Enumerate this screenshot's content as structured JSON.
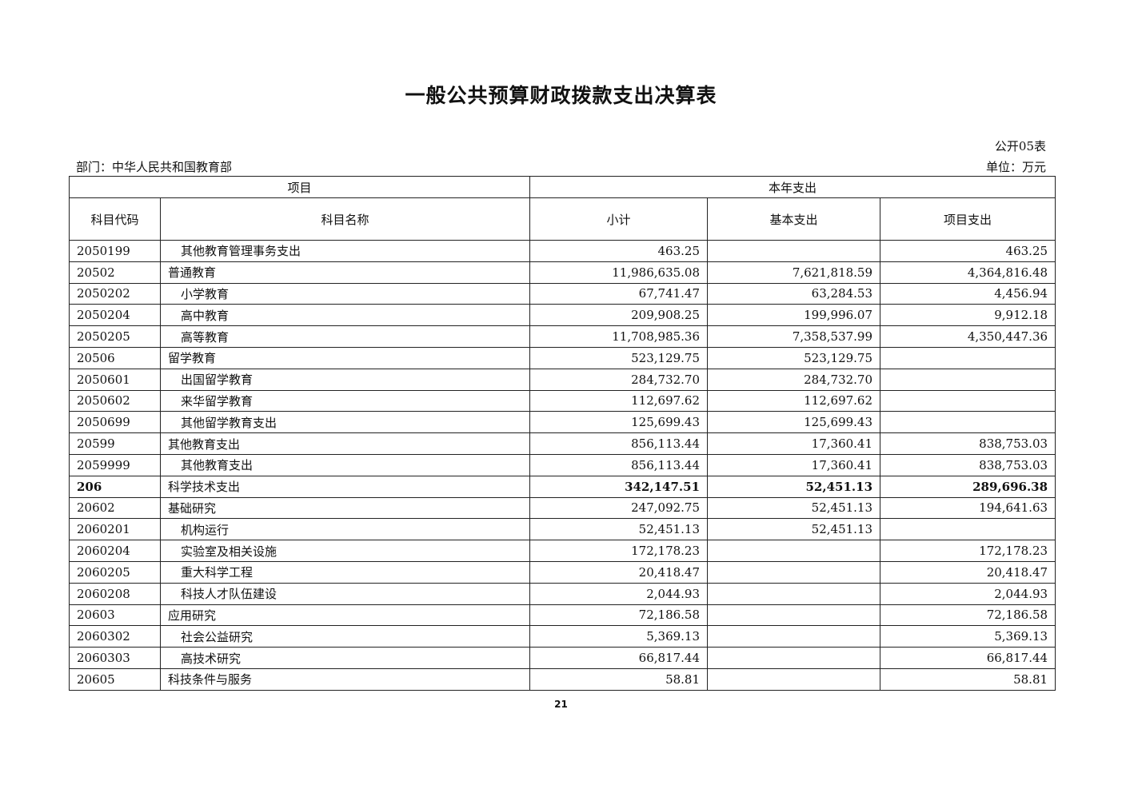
{
  "title": "一般公共预算财政拨款支出决算表",
  "form_number": "公开05表",
  "department": "部门：中华人民共和国教育部",
  "unit": "单位：万元",
  "table": {
    "group_headers": {
      "item": "项目",
      "current_year": "本年支出"
    },
    "columns": [
      "科目代码",
      "科目名称",
      "小计",
      "基本支出",
      "项目支出"
    ],
    "rows": [
      {
        "code": "2050199",
        "name": "其他教育管理事务支出",
        "subtotal": "463.25",
        "basic": "",
        "project": "463.25"
      },
      {
        "code": "20502",
        "name": "普通教育",
        "subtotal": "11,986,635.08",
        "basic": "7,621,818.59",
        "project": "4,364,816.48"
      },
      {
        "code": "2050202",
        "name": "小学教育",
        "subtotal": "67,741.47",
        "basic": "63,284.53",
        "project": "4,456.94"
      },
      {
        "code": "2050204",
        "name": "高中教育",
        "subtotal": "209,908.25",
        "basic": "199,996.07",
        "project": "9,912.18"
      },
      {
        "code": "2050205",
        "name": "高等教育",
        "subtotal": "11,708,985.36",
        "basic": "7,358,537.99",
        "project": "4,350,447.36"
      },
      {
        "code": "20506",
        "name": "留学教育",
        "subtotal": "523,129.75",
        "basic": "523,129.75",
        "project": ""
      },
      {
        "code": "2050601",
        "name": "出国留学教育",
        "subtotal": "284,732.70",
        "basic": "284,732.70",
        "project": ""
      },
      {
        "code": "2050602",
        "name": "来华留学教育",
        "subtotal": "112,697.62",
        "basic": "112,697.62",
        "project": ""
      },
      {
        "code": "2050699",
        "name": "其他留学教育支出",
        "subtotal": "125,699.43",
        "basic": "125,699.43",
        "project": ""
      },
      {
        "code": "20599",
        "name": "其他教育支出",
        "subtotal": "856,113.44",
        "basic": "17,360.41",
        "project": "838,753.03"
      },
      {
        "code": "2059999",
        "name": "其他教育支出",
        "subtotal": "856,113.44",
        "basic": "17,360.41",
        "project": "838,753.03"
      },
      {
        "code": "206",
        "name": "科学技术支出",
        "subtotal": "342,147.51",
        "basic": "52,451.13",
        "project": "289,696.38"
      },
      {
        "code": "20602",
        "name": "基础研究",
        "subtotal": "247,092.75",
        "basic": "52,451.13",
        "project": "194,641.63"
      },
      {
        "code": "2060201",
        "name": "机构运行",
        "subtotal": "52,451.13",
        "basic": "52,451.13",
        "project": ""
      },
      {
        "code": "2060204",
        "name": "实验室及相关设施",
        "subtotal": "172,178.23",
        "basic": "",
        "project": "172,178.23"
      },
      {
        "code": "2060205",
        "name": "重大科学工程",
        "subtotal": "20,418.47",
        "basic": "",
        "project": "20,418.47"
      },
      {
        "code": "2060208",
        "name": "科技人才队伍建设",
        "subtotal": "2,044.93",
        "basic": "",
        "project": "2,044.93"
      },
      {
        "code": "20603",
        "name": "应用研究",
        "subtotal": "72,186.58",
        "basic": "",
        "project": "72,186.58"
      },
      {
        "code": "2060302",
        "name": "社会公益研究",
        "subtotal": "5,369.13",
        "basic": "",
        "project": "5,369.13"
      },
      {
        "code": "2060303",
        "name": "高技术研究",
        "subtotal": "66,817.44",
        "basic": "",
        "project": "66,817.44"
      },
      {
        "code": "20605",
        "name": "科技条件与服务",
        "subtotal": "58.81",
        "basic": "",
        "project": "58.81"
      }
    ]
  },
  "page_number": "21"
}
